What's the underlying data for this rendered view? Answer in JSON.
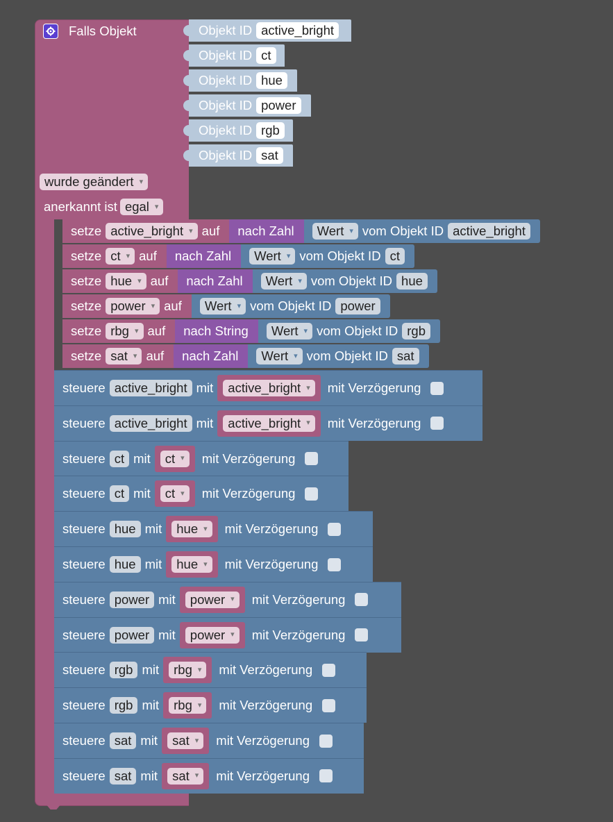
{
  "event": {
    "title": "Falls Objekt",
    "objects": [
      "active_bright",
      "ct",
      "hue",
      "power",
      "rgb",
      "sat"
    ],
    "object_label": "Objekt ID",
    "trigger": "wurde geändert",
    "ack_label": "anerkannt ist",
    "ack_value": "egal"
  },
  "setze": {
    "label": "setze",
    "auf": "auf",
    "wert": "Wert",
    "vom": "vom Objekt ID",
    "rows": [
      {
        "var": "active_bright",
        "conv": "nach Zahl",
        "obj": "active_bright"
      },
      {
        "var": "ct",
        "conv": "nach Zahl",
        "obj": "ct"
      },
      {
        "var": "hue",
        "conv": "nach Zahl",
        "obj": "hue"
      },
      {
        "var": "power",
        "conv": "",
        "obj": "power"
      },
      {
        "var": "rbg",
        "conv": "nach String",
        "obj": "rgb"
      },
      {
        "var": "sat",
        "conv": "nach Zahl",
        "obj": "sat"
      }
    ]
  },
  "steuere": {
    "label": "steuere",
    "mit": "mit",
    "delay": "mit Verzögerung",
    "rows": [
      {
        "obj": "active_bright",
        "var": "active_bright"
      },
      {
        "obj": "active_bright",
        "var": "active_bright"
      },
      {
        "obj": "ct",
        "var": "ct"
      },
      {
        "obj": "ct",
        "var": "ct"
      },
      {
        "obj": "hue",
        "var": "hue"
      },
      {
        "obj": "hue",
        "var": "hue"
      },
      {
        "obj": "power",
        "var": "power"
      },
      {
        "obj": "power",
        "var": "power"
      },
      {
        "obj": "rgb",
        "var": "rbg"
      },
      {
        "obj": "rgb",
        "var": "rbg"
      },
      {
        "obj": "sat",
        "var": "sat"
      },
      {
        "obj": "sat",
        "var": "sat"
      }
    ]
  }
}
